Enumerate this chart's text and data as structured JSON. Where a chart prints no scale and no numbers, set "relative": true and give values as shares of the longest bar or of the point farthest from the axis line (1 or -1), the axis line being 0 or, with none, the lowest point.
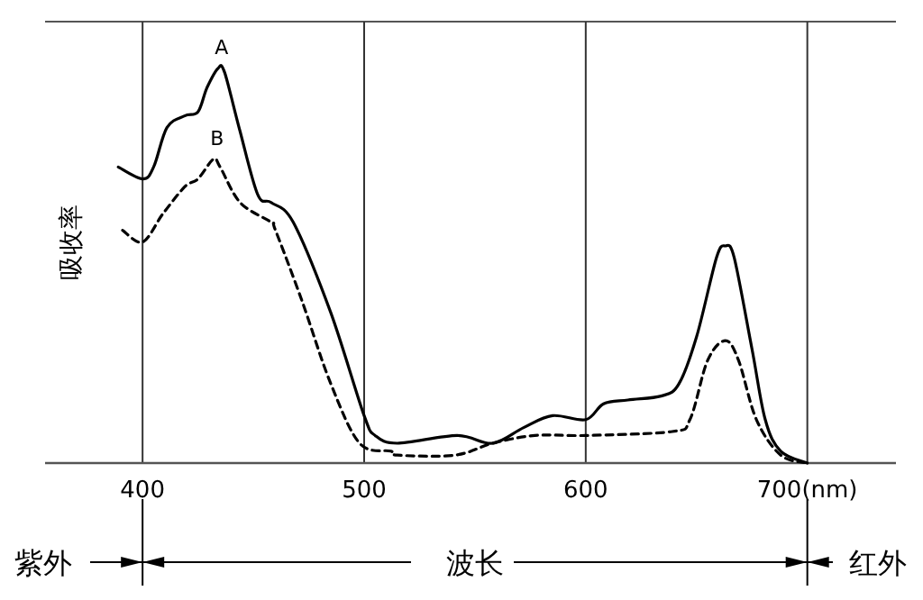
{
  "chart_data": {
    "type": "line",
    "relative": true,
    "ylabel": "吸收率",
    "xlabel": "波长",
    "xlim": [
      356,
      740
    ],
    "xticks": [
      400,
      500,
      600,
      {
        "value": 700,
        "label": "700(nm)"
      }
    ],
    "grid": "x",
    "annotations": [
      "紫外",
      "红外"
    ],
    "series": [
      {
        "name": "A",
        "color": "#000000",
        "line_style": "solid",
        "x": [
          389,
          400,
          405,
          411,
          419,
          425,
          429,
          434,
          437,
          444,
          452,
          458,
          468,
          485,
          500,
          505,
          515,
          542,
          558,
          572,
          585,
          600,
          608,
          619,
          634,
          642,
          650,
          659,
          663,
          667,
          675,
          681,
          688,
          700
        ],
        "values": [
          0.75,
          0.72,
          0.75,
          0.85,
          0.88,
          0.89,
          0.95,
          1.0,
          0.99,
          0.84,
          0.68,
          0.66,
          0.61,
          0.38,
          0.12,
          0.07,
          0.05,
          0.07,
          0.05,
          0.09,
          0.12,
          0.11,
          0.15,
          0.16,
          0.17,
          0.2,
          0.32,
          0.52,
          0.55,
          0.52,
          0.29,
          0.11,
          0.03,
          0
        ]
      },
      {
        "name": "B",
        "color": "#000000",
        "line_style": "dashed",
        "x": [
          391,
          400,
          409,
          419,
          425,
          432,
          435,
          444,
          458,
          460,
          472,
          485,
          498,
          512,
          515,
          541,
          558,
          577,
          600,
          639,
          647,
          655,
          663,
          669,
          677,
          688,
          700
        ],
        "values": [
          0.59,
          0.56,
          0.63,
          0.7,
          0.72,
          0.77,
          0.75,
          0.66,
          0.61,
          0.59,
          0.41,
          0.2,
          0.05,
          0.03,
          0.02,
          0.02,
          0.05,
          0.07,
          0.07,
          0.08,
          0.11,
          0.26,
          0.31,
          0.26,
          0.11,
          0.02,
          0
        ]
      }
    ]
  }
}
